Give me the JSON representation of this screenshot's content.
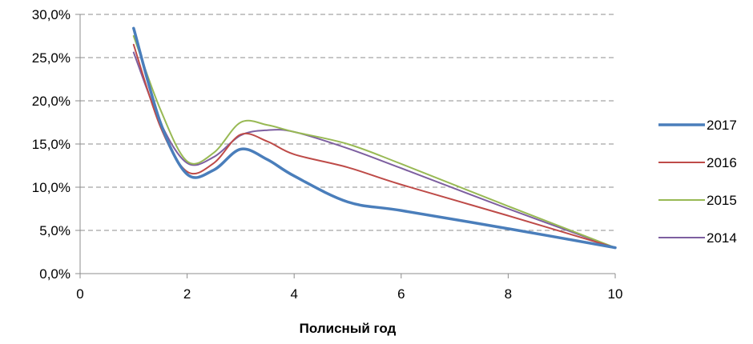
{
  "chart_data": {
    "type": "line",
    "title": "",
    "xlabel": "Полисный год",
    "ylabel": "",
    "xlim": [
      0,
      10
    ],
    "ylim": [
      0,
      30
    ],
    "x_ticks": [
      0,
      2,
      4,
      6,
      8,
      10
    ],
    "x_tick_labels": [
      "0",
      "2",
      "4",
      "6",
      "8",
      "10"
    ],
    "y_ticks": [
      0,
      5,
      10,
      15,
      20,
      25,
      30
    ],
    "y_tick_labels": [
      "0,0%",
      "5,0%",
      "10,0%",
      "15,0%",
      "20,0%",
      "25,0%",
      "30,0%"
    ],
    "grid": "horizontal-dashed",
    "legend_position": "right",
    "series": [
      {
        "name": "2017",
        "color": "#4a7ebb",
        "width": 3.5,
        "points": [
          [
            1,
            28.4
          ],
          [
            1.5,
            17.5
          ],
          [
            2,
            11.5
          ],
          [
            2.5,
            12.0
          ],
          [
            3,
            14.4
          ],
          [
            3.5,
            13.2
          ],
          [
            4,
            11.3
          ],
          [
            5,
            8.3
          ],
          [
            6,
            7.3
          ],
          [
            8,
            5.2
          ],
          [
            10,
            3.0
          ]
        ]
      },
      {
        "name": "2016",
        "color": "#be4b48",
        "width": 2,
        "points": [
          [
            1,
            26.5
          ],
          [
            1.5,
            17.0
          ],
          [
            2,
            11.8
          ],
          [
            2.5,
            12.8
          ],
          [
            3,
            16.1
          ],
          [
            3.5,
            15.3
          ],
          [
            4,
            13.8
          ],
          [
            5,
            12.3
          ],
          [
            6,
            10.3
          ],
          [
            8,
            6.7
          ],
          [
            10,
            3.0
          ]
        ]
      },
      {
        "name": "2015",
        "color": "#98b954",
        "width": 2,
        "points": [
          [
            1,
            27.5
          ],
          [
            1.5,
            19.0
          ],
          [
            2,
            13.0
          ],
          [
            2.5,
            14.0
          ],
          [
            3,
            17.5
          ],
          [
            3.5,
            17.2
          ],
          [
            4,
            16.4
          ],
          [
            5,
            15.0
          ],
          [
            6,
            12.7
          ],
          [
            8,
            7.8
          ],
          [
            10,
            3.0
          ]
        ]
      },
      {
        "name": "2014",
        "color": "#7d5fa0",
        "width": 2,
        "points": [
          [
            1,
            25.6
          ],
          [
            1.5,
            17.5
          ],
          [
            2,
            12.8
          ],
          [
            2.5,
            13.5
          ],
          [
            3,
            16.0
          ],
          [
            3.5,
            16.6
          ],
          [
            4,
            16.4
          ],
          [
            5,
            14.5
          ],
          [
            6,
            12.2
          ],
          [
            8,
            7.5
          ],
          [
            10,
            3.0
          ]
        ]
      }
    ]
  }
}
